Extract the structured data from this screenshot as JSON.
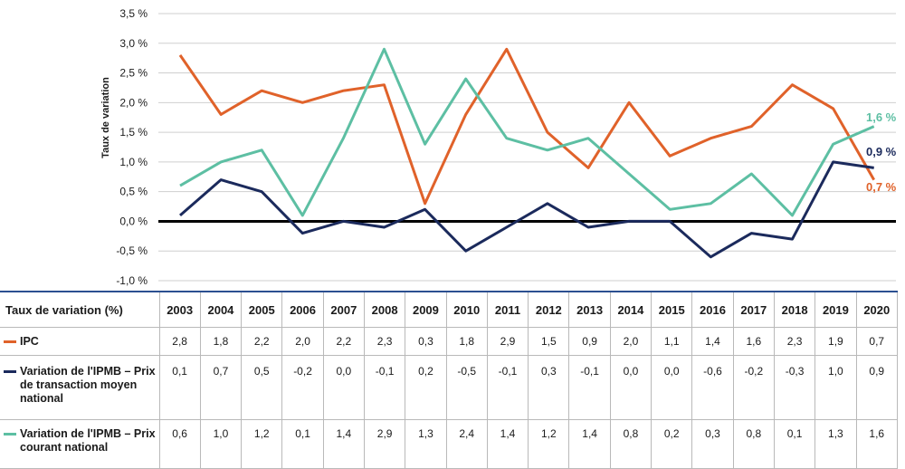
{
  "chart_data": {
    "type": "line",
    "ylabel": "Taux de variation",
    "ylim": [
      -1.0,
      3.5
    ],
    "yticks": [
      -1.0,
      -0.5,
      0.0,
      0.5,
      1.0,
      1.5,
      2.0,
      2.5,
      3.0,
      3.5
    ],
    "ytick_labels": [
      "-1,0 %",
      "-0,5 %",
      "0,0 %",
      "0,5 %",
      "1,0 %",
      "1,5 %",
      "2,0 %",
      "2,5 %",
      "3,0 %",
      "3,5 %"
    ],
    "grid": true,
    "x": [
      "2003",
      "2004",
      "2005",
      "2006",
      "2007",
      "2008",
      "2009",
      "2010",
      "2011",
      "2012",
      "2013",
      "2014",
      "2015",
      "2016",
      "2017",
      "2018",
      "2019",
      "2020"
    ],
    "series": [
      {
        "name": "IPC",
        "color": "#e0622a",
        "values": [
          2.8,
          1.8,
          2.2,
          2.0,
          2.2,
          2.3,
          0.3,
          1.8,
          2.9,
          1.5,
          0.9,
          2.0,
          1.1,
          1.4,
          1.6,
          2.3,
          1.9,
          0.7
        ],
        "end_label": "0,7 %"
      },
      {
        "name": "Variation de l'IPMB – Prix de transaction moyen national",
        "color": "#1b2a5c",
        "values": [
          0.1,
          0.7,
          0.5,
          -0.2,
          0.0,
          -0.1,
          0.2,
          -0.5,
          -0.1,
          0.3,
          -0.1,
          0.0,
          0.0,
          -0.6,
          -0.2,
          -0.3,
          1.0,
          0.9
        ],
        "end_label": "0,9 %"
      },
      {
        "name": "Variation de l'IPMB – Prix courant national",
        "color": "#5dbfa3",
        "values": [
          0.6,
          1.0,
          1.2,
          0.1,
          1.4,
          2.9,
          1.3,
          2.4,
          1.4,
          1.2,
          1.4,
          0.8,
          0.2,
          0.3,
          0.8,
          0.1,
          1.3,
          1.6
        ],
        "end_label": "1,6 %"
      }
    ]
  },
  "table": {
    "header_label": "Taux de variation (%)",
    "years": [
      "2003",
      "2004",
      "2005",
      "2006",
      "2007",
      "2008",
      "2009",
      "2010",
      "2011",
      "2012",
      "2013",
      "2014",
      "2015",
      "2016",
      "2017",
      "2018",
      "2019",
      "2020"
    ],
    "rows": [
      {
        "label": "IPC",
        "cells": [
          "2,8",
          "1,8",
          "2,2",
          "2,0",
          "2,2",
          "2,3",
          "0,3",
          "1,8",
          "2,9",
          "1,5",
          "0,9",
          "2,0",
          "1,1",
          "1,4",
          "1,6",
          "2,3",
          "1,9",
          "0,7"
        ]
      },
      {
        "label": "Variation de l'IPMB – Prix de transaction moyen national",
        "cells": [
          "0,1",
          "0,7",
          "0,5",
          "-0,2",
          "0,0",
          "-0,1",
          "0,2",
          "-0,5",
          "-0,1",
          "0,3",
          "-0,1",
          "0,0",
          "0,0",
          "-0,6",
          "-0,2",
          "-0,3",
          "1,0",
          "0,9"
        ]
      },
      {
        "label": "Variation de l'IPMB – Prix courant national",
        "cells": [
          "0,6",
          "1,0",
          "1,2",
          "0,1",
          "1,4",
          "2,9",
          "1,3",
          "2,4",
          "1,4",
          "1,2",
          "1,4",
          "0,8",
          "0,2",
          "0,3",
          "0,8",
          "0,1",
          "1,3",
          "1,6"
        ]
      }
    ]
  }
}
